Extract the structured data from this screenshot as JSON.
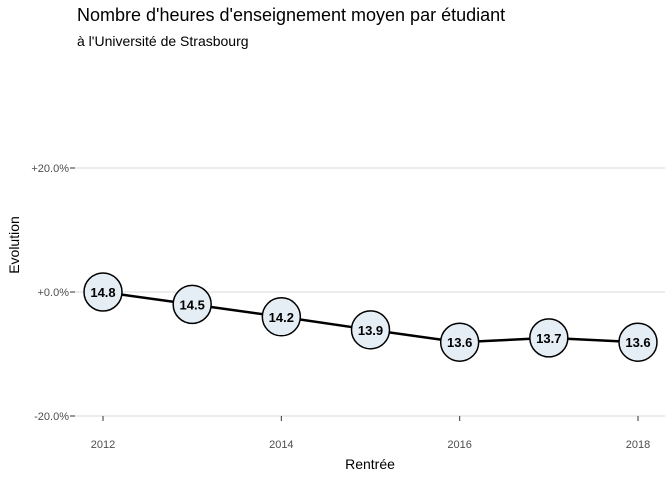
{
  "chart_data": {
    "type": "line",
    "title": "Nombre d'heures d'enseignement moyen par étudiant",
    "subtitle": "à  l'Université de Strasbourg",
    "xlabel": "Rentrée",
    "ylabel": "Evolution",
    "x": [
      2012,
      2013,
      2014,
      2015,
      2016,
      2017,
      2018
    ],
    "y_pct": [
      0.0,
      -2.0,
      -4.0,
      -6.1,
      -8.1,
      -7.4,
      -8.1
    ],
    "labels": [
      "14.8",
      "14.5",
      "14.2",
      "13.9",
      "13.6",
      "13.7",
      "13.6"
    ],
    "x_ticks": [
      "2012",
      "2014",
      "2016",
      "2018"
    ],
    "y_ticks": [
      "+20.0%",
      "+0.0%",
      "-20.0%"
    ],
    "ylim": [
      -22,
      23
    ],
    "xlim": [
      2011.7,
      2018.3
    ],
    "grid": true,
    "colors": {
      "line": "#000000",
      "marker_fill": "#e6eef5",
      "marker_stroke": "#000000",
      "grid": "#d9d9d9"
    }
  }
}
